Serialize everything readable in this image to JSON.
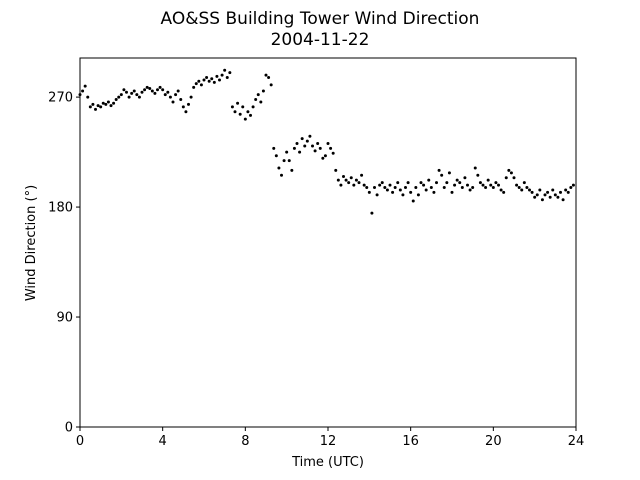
{
  "chart_data": {
    "type": "scatter",
    "title": "AO&SS Building Tower Wind Direction",
    "subtitle": "2004-11-22",
    "x_label": "Time (UTC)",
    "y_label": "Wind Direction (°)",
    "color": "#000000",
    "xlim": [
      0,
      24
    ],
    "xticks": [
      0,
      4,
      8,
      12,
      16,
      20,
      24
    ],
    "ylim": [
      0,
      302
    ],
    "yticks": [
      0,
      90,
      180,
      270
    ],
    "x": [
      0,
      0.125,
      0.25,
      0.375,
      0.5,
      0.625,
      0.75,
      0.875,
      1,
      1.125,
      1.25,
      1.375,
      1.5,
      1.625,
      1.75,
      1.875,
      2,
      2.125,
      2.25,
      2.375,
      2.5,
      2.625,
      2.75,
      2.875,
      3,
      3.125,
      3.25,
      3.375,
      3.5,
      3.625,
      3.75,
      3.875,
      4,
      4.125,
      4.25,
      4.375,
      4.5,
      4.625,
      4.75,
      4.875,
      5,
      5.125,
      5.25,
      5.375,
      5.5,
      5.625,
      5.75,
      5.875,
      6,
      6.125,
      6.25,
      6.375,
      6.5,
      6.625,
      6.75,
      6.875,
      7,
      7.125,
      7.25,
      7.375,
      7.5,
      7.625,
      7.75,
      7.875,
      8,
      8.125,
      8.25,
      8.375,
      8.5,
      8.625,
      8.75,
      8.875,
      9,
      9.125,
      9.25,
      9.375,
      9.5,
      9.625,
      9.75,
      9.875,
      10,
      10.125,
      10.25,
      10.375,
      10.5,
      10.625,
      10.75,
      10.875,
      11,
      11.125,
      11.25,
      11.375,
      11.5,
      11.625,
      11.75,
      11.875,
      12,
      12.125,
      12.25,
      12.375,
      12.5,
      12.625,
      12.75,
      12.875,
      13,
      13.125,
      13.25,
      13.375,
      13.5,
      13.625,
      13.75,
      13.875,
      14,
      14.125,
      14.25,
      14.375,
      14.5,
      14.625,
      14.75,
      14.875,
      15,
      15.125,
      15.25,
      15.375,
      15.5,
      15.625,
      15.75,
      15.875,
      16,
      16.125,
      16.25,
      16.375,
      16.5,
      16.625,
      16.75,
      16.875,
      17,
      17.125,
      17.25,
      17.375,
      17.5,
      17.625,
      17.75,
      17.875,
      18,
      18.125,
      18.25,
      18.375,
      18.5,
      18.625,
      18.75,
      18.875,
      19,
      19.125,
      19.25,
      19.375,
      19.5,
      19.625,
      19.75,
      19.875,
      20,
      20.125,
      20.25,
      20.375,
      20.5,
      20.625,
      20.75,
      20.875,
      21,
      21.125,
      21.25,
      21.375,
      21.5,
      21.625,
      21.75,
      21.875,
      22,
      22.125,
      22.25,
      22.375,
      22.5,
      22.625,
      22.75,
      22.875,
      23,
      23.125,
      23.25,
      23.375,
      23.5,
      23.625,
      23.75,
      23.875
    ],
    "values": [
      272,
      275,
      279,
      270,
      262,
      264,
      260,
      263,
      262,
      265,
      264,
      266,
      263,
      265,
      268,
      270,
      272,
      276,
      274,
      270,
      273,
      275,
      272,
      270,
      274,
      276,
      278,
      277,
      275,
      273,
      276,
      278,
      276,
      272,
      274,
      270,
      266,
      272,
      275,
      268,
      262,
      258,
      264,
      270,
      278,
      281,
      283,
      280,
      284,
      286,
      283,
      285,
      282,
      287,
      284,
      288,
      292,
      286,
      290,
      262,
      258,
      265,
      256,
      262,
      252,
      258,
      255,
      262,
      268,
      272,
      266,
      275,
      288,
      286,
      280,
      228,
      222,
      212,
      206,
      218,
      225,
      218,
      210,
      228,
      232,
      225,
      236,
      230,
      234,
      238,
      230,
      226,
      232,
      228,
      220,
      222,
      232,
      228,
      224,
      210,
      202,
      198,
      205,
      202,
      200,
      204,
      198,
      202,
      200,
      206,
      198,
      196,
      192,
      175,
      196,
      190,
      198,
      200,
      196,
      194,
      198,
      192,
      196,
      200,
      194,
      190,
      196,
      200,
      192,
      185,
      196,
      190,
      200,
      198,
      194,
      202,
      196,
      192,
      200,
      210,
      206,
      196,
      200,
      208,
      192,
      198,
      202,
      200,
      196,
      204,
      198,
      194,
      196,
      212,
      206,
      200,
      198,
      196,
      202,
      198,
      196,
      200,
      198,
      194,
      192,
      204,
      210,
      208,
      204,
      198,
      196,
      194,
      200,
      196,
      194,
      192,
      188,
      190,
      194,
      186,
      190,
      192,
      188,
      194,
      190,
      188,
      192,
      186,
      194,
      192,
      196,
      198
    ]
  }
}
